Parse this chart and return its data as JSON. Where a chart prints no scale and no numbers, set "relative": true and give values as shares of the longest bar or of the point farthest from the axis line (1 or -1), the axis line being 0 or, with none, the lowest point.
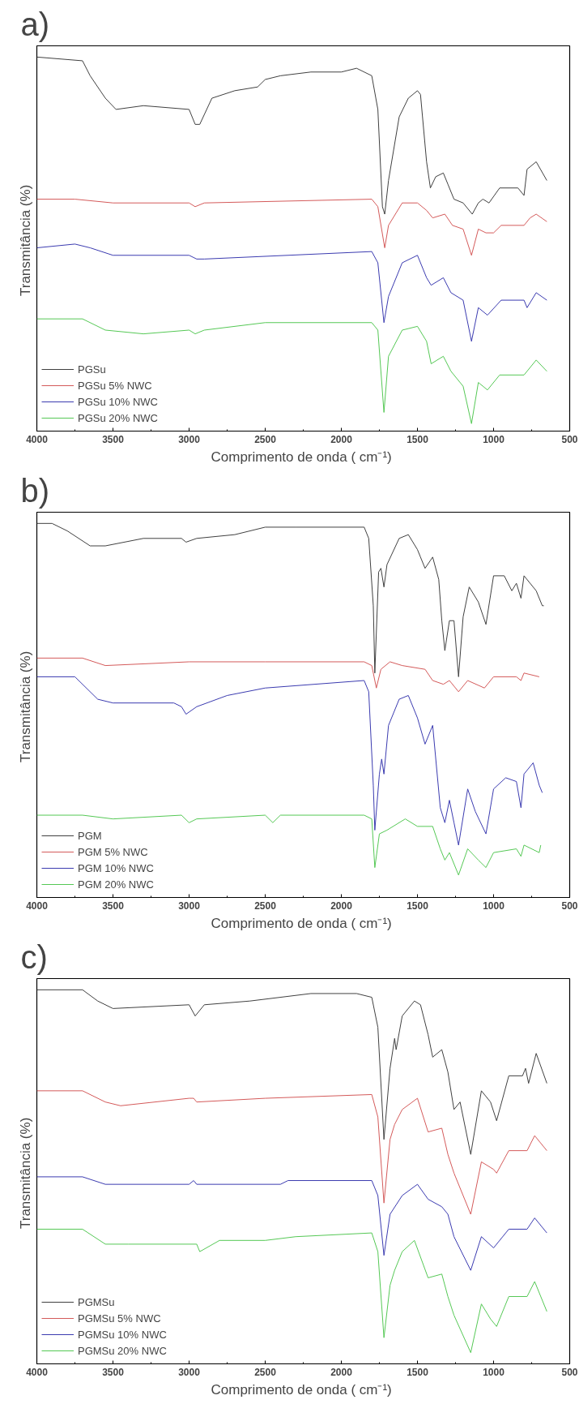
{
  "chart_data": [
    {
      "type": "line",
      "title": "a)",
      "xlabel": "Comprimento de onda  ( cm⁻¹)",
      "ylabel": "Transmitância  (%)",
      "relative": true,
      "xlim": [
        4000,
        500
      ],
      "xticks": [
        4000,
        3500,
        3000,
        2500,
        2000,
        1500,
        1000,
        500
      ],
      "grid": false,
      "legend": "bottom left",
      "series": [
        {
          "name": "PGSu",
          "color": "#404040",
          "x": [
            4000,
            3700,
            3650,
            3550,
            3480,
            3300,
            3000,
            2960,
            2930,
            2850,
            2700,
            2550,
            2500,
            2400,
            2200,
            2000,
            1900,
            1800,
            1760,
            1730,
            1715,
            1690,
            1620,
            1560,
            1500,
            1480,
            1440,
            1415,
            1380,
            1330,
            1300,
            1260,
            1200,
            1140,
            1100,
            1070,
            1030,
            960,
            840,
            800,
            780,
            720,
            650
          ],
          "values": [
            1.0,
            0.99,
            0.95,
            0.89,
            0.86,
            0.87,
            0.86,
            0.82,
            0.82,
            0.89,
            0.91,
            0.92,
            0.94,
            0.95,
            0.96,
            0.96,
            0.97,
            0.95,
            0.86,
            0.6,
            0.58,
            0.67,
            0.84,
            0.89,
            0.91,
            0.9,
            0.72,
            0.65,
            0.68,
            0.69,
            0.66,
            0.62,
            0.61,
            0.58,
            0.61,
            0.62,
            0.61,
            0.65,
            0.65,
            0.63,
            0.7,
            0.72,
            0.67
          ]
        },
        {
          "name": "PGSu 5% NWC",
          "color": "#d45a5a",
          "x": [
            4000,
            3750,
            3500,
            3000,
            2960,
            2900,
            1800,
            1760,
            1715,
            1690,
            1600,
            1500,
            1440,
            1400,
            1320,
            1270,
            1200,
            1145,
            1100,
            1050,
            1000,
            950,
            800,
            760,
            720,
            650
          ],
          "values": [
            0.62,
            0.62,
            0.61,
            0.61,
            0.6,
            0.61,
            0.62,
            0.6,
            0.49,
            0.55,
            0.61,
            0.61,
            0.59,
            0.57,
            0.58,
            0.55,
            0.54,
            0.47,
            0.54,
            0.53,
            0.53,
            0.55,
            0.55,
            0.57,
            0.58,
            0.56
          ]
        },
        {
          "name": "PGSu 10% NWC",
          "color": "#3b3bb0",
          "x": [
            4000,
            3750,
            3650,
            3500,
            3000,
            2950,
            2900,
            1800,
            1760,
            1720,
            1690,
            1600,
            1500,
            1440,
            1410,
            1330,
            1280,
            1200,
            1145,
            1100,
            1040,
            950,
            800,
            780,
            720,
            650
          ],
          "values": [
            0.49,
            0.5,
            0.49,
            0.47,
            0.47,
            0.46,
            0.46,
            0.48,
            0.45,
            0.29,
            0.36,
            0.45,
            0.47,
            0.41,
            0.39,
            0.41,
            0.37,
            0.35,
            0.24,
            0.33,
            0.31,
            0.35,
            0.35,
            0.33,
            0.37,
            0.35
          ]
        },
        {
          "name": "PGSu 20% NWC",
          "color": "#55c855",
          "x": [
            4000,
            3700,
            3550,
            3300,
            3000,
            2960,
            2900,
            2500,
            1800,
            1760,
            1720,
            1690,
            1600,
            1500,
            1440,
            1410,
            1330,
            1280,
            1200,
            1145,
            1100,
            1040,
            960,
            800,
            720,
            650
          ],
          "values": [
            0.3,
            0.3,
            0.27,
            0.26,
            0.27,
            0.26,
            0.27,
            0.29,
            0.29,
            0.27,
            0.05,
            0.2,
            0.27,
            0.28,
            0.24,
            0.18,
            0.2,
            0.16,
            0.12,
            0.02,
            0.13,
            0.11,
            0.15,
            0.15,
            0.19,
            0.16
          ]
        }
      ]
    },
    {
      "type": "line",
      "title": "b)",
      "xlabel": "Comprimento de onda  ( cm⁻¹)",
      "ylabel": "Transmitância  (%)",
      "relative": true,
      "xlim": [
        4000,
        500
      ],
      "xticks": [
        4000,
        3500,
        3000,
        2500,
        2000,
        1500,
        1000,
        500
      ],
      "grid": false,
      "legend": "bottom left",
      "series": [
        {
          "name": "PGM",
          "color": "#404040",
          "x": [
            4000,
            3900,
            3800,
            3650,
            3550,
            3300,
            3050,
            3020,
            2950,
            2700,
            2500,
            2300,
            1850,
            1820,
            1790,
            1780,
            1755,
            1740,
            1720,
            1700,
            1620,
            1560,
            1500,
            1480,
            1450,
            1400,
            1360,
            1340,
            1320,
            1290,
            1260,
            1230,
            1200,
            1160,
            1100,
            1050,
            1000,
            930,
            880,
            850,
            820,
            800,
            720,
            680,
            670
          ],
          "values": [
            1.0,
            1.0,
            0.98,
            0.94,
            0.94,
            0.96,
            0.96,
            0.95,
            0.96,
            0.97,
            0.99,
            0.99,
            0.99,
            0.96,
            0.78,
            0.6,
            0.87,
            0.88,
            0.83,
            0.89,
            0.96,
            0.97,
            0.93,
            0.91,
            0.88,
            0.91,
            0.85,
            0.74,
            0.66,
            0.74,
            0.74,
            0.59,
            0.75,
            0.83,
            0.79,
            0.73,
            0.86,
            0.86,
            0.82,
            0.84,
            0.8,
            0.86,
            0.82,
            0.78,
            0.78
          ]
        },
        {
          "name": "PGM 5% NWC",
          "color": "#d45a5a",
          "x": [
            4000,
            3700,
            3550,
            3000,
            2500,
            1850,
            1800,
            1770,
            1740,
            1680,
            1600,
            1450,
            1400,
            1330,
            1290,
            1230,
            1170,
            1060,
            1000,
            850,
            820,
            800,
            700
          ],
          "values": [
            0.64,
            0.64,
            0.62,
            0.63,
            0.63,
            0.63,
            0.62,
            0.56,
            0.61,
            0.63,
            0.62,
            0.61,
            0.58,
            0.57,
            0.58,
            0.55,
            0.58,
            0.56,
            0.59,
            0.59,
            0.58,
            0.6,
            0.59
          ]
        },
        {
          "name": "PGM 10% NWC",
          "color": "#3b3bb0",
          "x": [
            4000,
            3750,
            3600,
            3500,
            3100,
            3050,
            3020,
            2950,
            2750,
            2500,
            1850,
            1820,
            1790,
            1780,
            1750,
            1735,
            1720,
            1690,
            1620,
            1560,
            1500,
            1450,
            1400,
            1350,
            1320,
            1290,
            1260,
            1230,
            1170,
            1120,
            1050,
            1000,
            920,
            850,
            820,
            800,
            740,
            700,
            680
          ],
          "values": [
            0.59,
            0.59,
            0.53,
            0.52,
            0.52,
            0.51,
            0.49,
            0.51,
            0.54,
            0.56,
            0.58,
            0.55,
            0.3,
            0.18,
            0.33,
            0.37,
            0.33,
            0.46,
            0.53,
            0.54,
            0.48,
            0.41,
            0.46,
            0.24,
            0.2,
            0.26,
            0.2,
            0.14,
            0.29,
            0.23,
            0.17,
            0.29,
            0.32,
            0.31,
            0.24,
            0.33,
            0.36,
            0.3,
            0.28
          ]
        },
        {
          "name": "PGM 20% NWC",
          "color": "#55c855",
          "x": [
            4000,
            3700,
            3500,
            3050,
            3000,
            2950,
            2500,
            2450,
            2400,
            1850,
            1800,
            1780,
            1750,
            1700,
            1580,
            1500,
            1400,
            1350,
            1320,
            1290,
            1230,
            1170,
            1100,
            1050,
            1000,
            850,
            820,
            800,
            700,
            690
          ],
          "values": [
            0.22,
            0.22,
            0.21,
            0.22,
            0.2,
            0.21,
            0.22,
            0.2,
            0.22,
            0.22,
            0.21,
            0.08,
            0.17,
            0.18,
            0.21,
            0.19,
            0.19,
            0.13,
            0.1,
            0.12,
            0.06,
            0.13,
            0.1,
            0.08,
            0.12,
            0.13,
            0.11,
            0.14,
            0.12,
            0.14
          ]
        }
      ]
    },
    {
      "type": "line",
      "title": "c)",
      "xlabel": "Comprimento de onda  ( cm⁻¹)",
      "ylabel": "Transmitância  (%)",
      "relative": true,
      "xlim": [
        4000,
        500
      ],
      "xticks": [
        4000,
        3500,
        3000,
        2500,
        2000,
        1500,
        1000,
        500
      ],
      "grid": false,
      "legend": "bottom left",
      "series": [
        {
          "name": "PGMSu",
          "color": "#404040",
          "x": [
            4000,
            3700,
            3600,
            3500,
            3000,
            2960,
            2900,
            2600,
            2200,
            1900,
            1800,
            1760,
            1720,
            1680,
            1650,
            1640,
            1600,
            1520,
            1480,
            1430,
            1400,
            1340,
            1300,
            1260,
            1220,
            1150,
            1080,
            1020,
            980,
            900,
            810,
            790,
            770,
            720,
            650
          ],
          "values": [
            1.0,
            1.0,
            0.97,
            0.95,
            0.96,
            0.93,
            0.96,
            0.97,
            0.99,
            0.99,
            0.98,
            0.9,
            0.6,
            0.79,
            0.87,
            0.84,
            0.93,
            0.97,
            0.96,
            0.88,
            0.82,
            0.84,
            0.78,
            0.68,
            0.7,
            0.56,
            0.73,
            0.7,
            0.65,
            0.77,
            0.77,
            0.79,
            0.75,
            0.83,
            0.75
          ]
        },
        {
          "name": "PGMSu 5% NWC",
          "color": "#d45a5a",
          "x": [
            4000,
            3700,
            3550,
            3450,
            3000,
            2970,
            2950,
            2500,
            1800,
            1760,
            1720,
            1680,
            1650,
            1600,
            1500,
            1430,
            1340,
            1300,
            1260,
            1150,
            1080,
            1000,
            980,
            900,
            780,
            730,
            650
          ],
          "values": [
            0.73,
            0.73,
            0.7,
            0.69,
            0.71,
            0.71,
            0.7,
            0.71,
            0.72,
            0.66,
            0.43,
            0.6,
            0.64,
            0.68,
            0.71,
            0.62,
            0.63,
            0.56,
            0.51,
            0.4,
            0.54,
            0.52,
            0.51,
            0.57,
            0.57,
            0.61,
            0.57
          ]
        },
        {
          "name": "PGMSu 10% NWC",
          "color": "#3b3bb0",
          "x": [
            4000,
            3700,
            3550,
            3000,
            2970,
            2950,
            2400,
            2350,
            1800,
            1760,
            1720,
            1680,
            1600,
            1500,
            1430,
            1340,
            1300,
            1260,
            1150,
            1080,
            1000,
            900,
            780,
            730,
            650
          ],
          "values": [
            0.5,
            0.5,
            0.48,
            0.48,
            0.49,
            0.48,
            0.48,
            0.49,
            0.49,
            0.45,
            0.29,
            0.4,
            0.45,
            0.48,
            0.44,
            0.42,
            0.4,
            0.34,
            0.25,
            0.34,
            0.31,
            0.36,
            0.36,
            0.39,
            0.35
          ]
        },
        {
          "name": "PGMSu 20% NWC",
          "color": "#55c855",
          "x": [
            4000,
            3700,
            3550,
            3400,
            2950,
            2930,
            2800,
            2500,
            2300,
            1800,
            1760,
            1720,
            1680,
            1650,
            1600,
            1520,
            1430,
            1340,
            1300,
            1260,
            1150,
            1080,
            1020,
            980,
            900,
            780,
            730,
            650
          ],
          "values": [
            0.36,
            0.36,
            0.32,
            0.32,
            0.32,
            0.3,
            0.33,
            0.33,
            0.34,
            0.35,
            0.3,
            0.07,
            0.21,
            0.25,
            0.3,
            0.33,
            0.23,
            0.24,
            0.18,
            0.13,
            0.03,
            0.16,
            0.12,
            0.1,
            0.18,
            0.18,
            0.22,
            0.14
          ]
        }
      ]
    }
  ]
}
